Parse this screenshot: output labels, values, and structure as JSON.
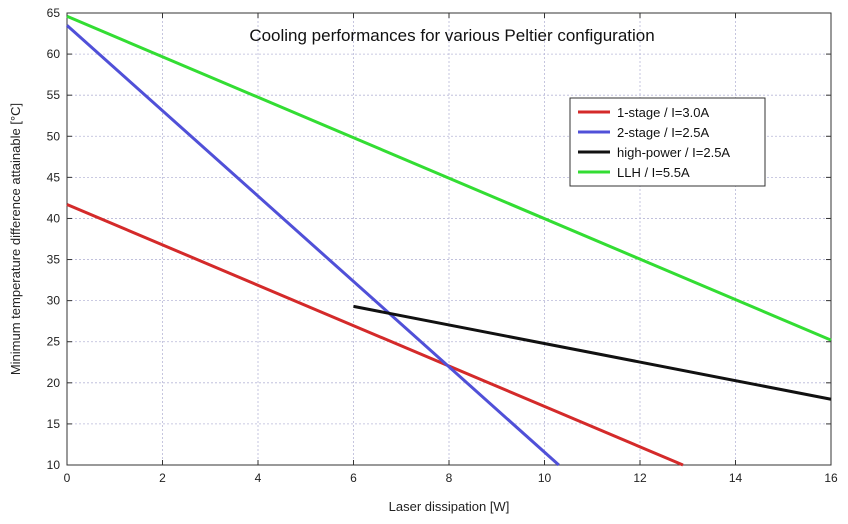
{
  "chart_data": {
    "type": "line",
    "title": "Cooling performances for various Peltier configuration",
    "xlabel": "Laser dissipation [W]",
    "ylabel": "Minimum temperature difference attainable [°C]",
    "xlim": [
      0,
      16
    ],
    "ylim": [
      10,
      65
    ],
    "xticks": [
      0,
      2,
      4,
      6,
      8,
      10,
      12,
      14,
      16
    ],
    "yticks": [
      10,
      15,
      20,
      25,
      30,
      35,
      40,
      45,
      50,
      55,
      60,
      65
    ],
    "grid": true,
    "legend_position": "top-right",
    "series": [
      {
        "name": "1-stage / I=3.0A",
        "color": "#d42a2a",
        "x": [
          0,
          12.9
        ],
        "y": [
          41.7,
          10
        ]
      },
      {
        "name": "2-stage / I=2.5A",
        "color": "#5050d8",
        "x": [
          0,
          10.3
        ],
        "y": [
          63.5,
          10
        ]
      },
      {
        "name": "high-power / I=2.5A",
        "color": "#111111",
        "x": [
          6,
          16
        ],
        "y": [
          29.3,
          18
        ]
      },
      {
        "name": "LLH / I=5.5A",
        "color": "#33dd33",
        "x": [
          0,
          16
        ],
        "y": [
          64.6,
          25.2
        ]
      }
    ]
  }
}
